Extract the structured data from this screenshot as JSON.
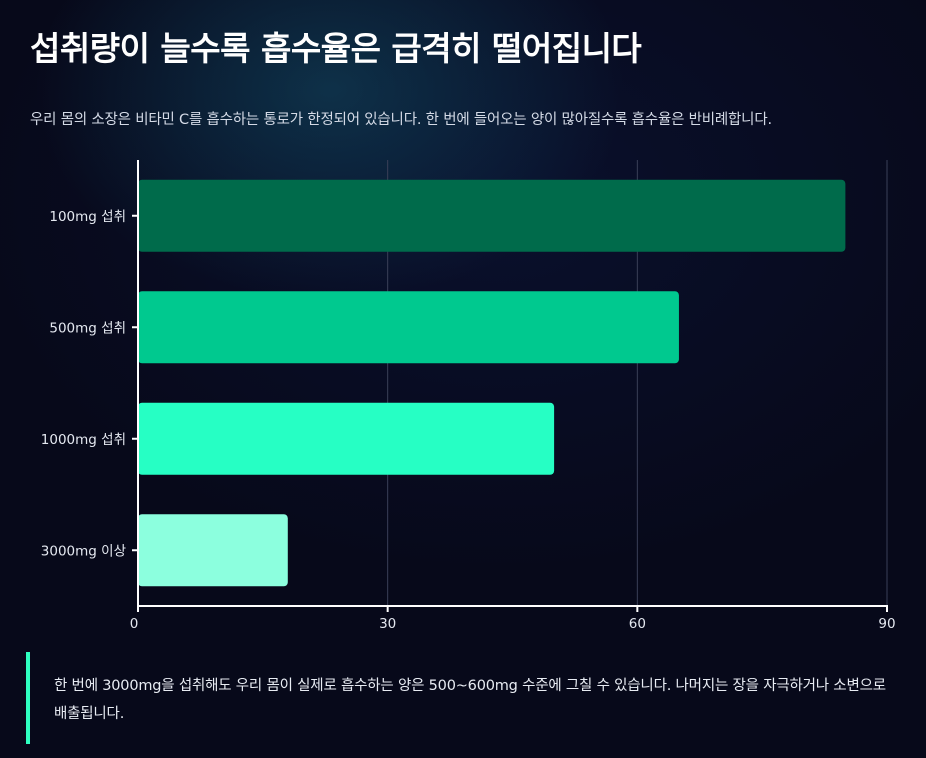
{
  "header": {
    "title": "섭취량이 늘수록 흡수율은 급격히 떨어집니다",
    "subtitle": "우리 몸의 소장은 비타민 C를 흡수하는 통로가 한정되어 있습니다. 한 번에 들어오는 양이 많아질수록 흡수율은 반비례합니다."
  },
  "chart_data": {
    "type": "bar",
    "orientation": "horizontal",
    "categories": [
      "100mg 섭취",
      "500mg 섭취",
      "1000mg 섭취",
      "3000mg 이상"
    ],
    "values": [
      85,
      65,
      50,
      18
    ],
    "xlim": [
      0,
      90
    ],
    "xticks": [
      0,
      30,
      60,
      90
    ],
    "grid": true,
    "bar_colors": [
      "#006b4b",
      "#00c98f",
      "#26ffc4",
      "#8cffde"
    ]
  },
  "callout": {
    "text": "한 번에 3000mg을 섭취해도 우리 몸이 실제로 흡수하는 양은 500~600mg 수준에 그칠 수 있습니다. 나머지는 장을 자극하거나 소변으로 배출됩니다."
  },
  "colors": {
    "accent": "#2effc0",
    "background": "#07091a"
  }
}
